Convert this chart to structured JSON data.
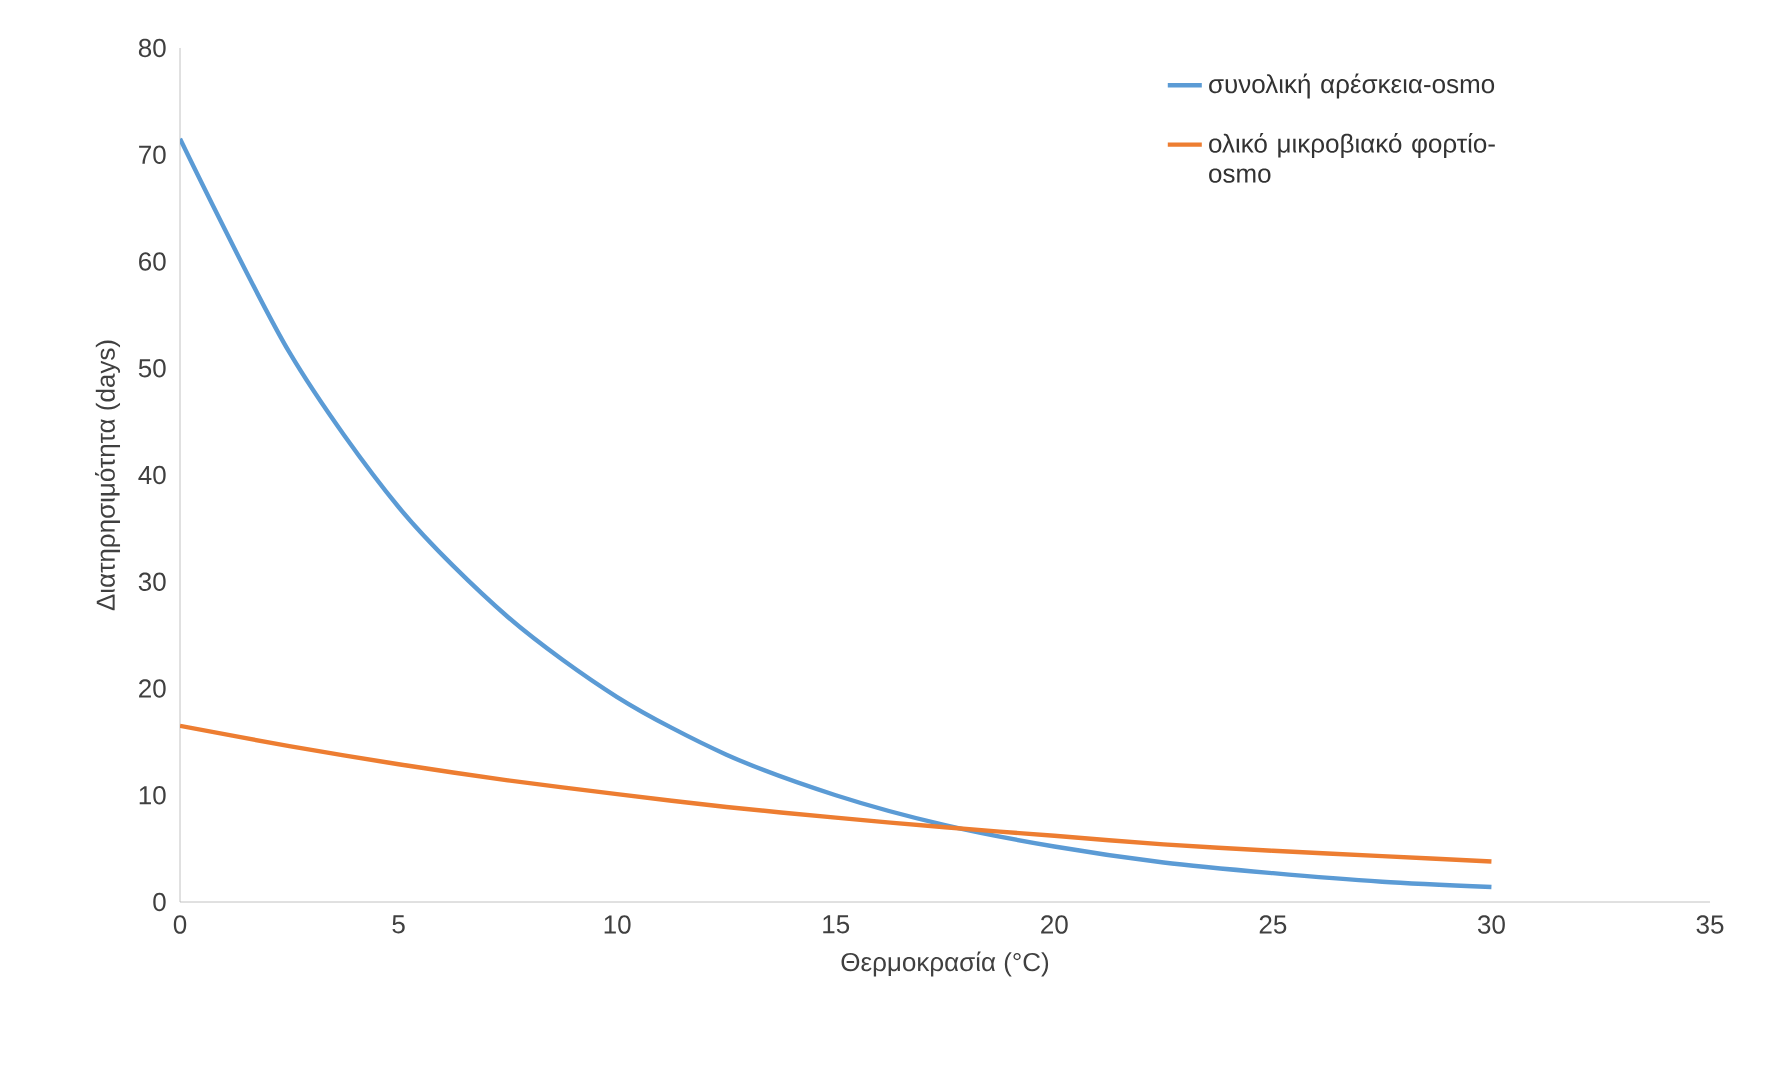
{
  "chart_data": {
    "type": "line",
    "xlabel": "Θερμοκρασία (°C)",
    "ylabel": "Διατηρησιμότητα (days)",
    "x": [
      0,
      2.5,
      5,
      7.5,
      10,
      12.5,
      15,
      17.5,
      20,
      22.5,
      25,
      27.5,
      30
    ],
    "xlim": [
      0,
      35
    ],
    "xticks": [
      0,
      5,
      10,
      15,
      20,
      25,
      30,
      35
    ],
    "ylim": [
      0,
      80
    ],
    "yticks": [
      0,
      10,
      20,
      30,
      40,
      50,
      60,
      70,
      80
    ],
    "legend": "top right",
    "series": [
      {
        "name": "συνολική αρέσκεια-osmo",
        "color": "#5b9bd5",
        "values": [
          71.5,
          51.5,
          37,
          26.7,
          19.2,
          13.8,
          10,
          7.2,
          5.2,
          3.7,
          2.7,
          1.9,
          1.4
        ]
      },
      {
        "name": "ολικό μικροβιακό φορτίο-osmo",
        "color": "#ed7d31",
        "values": [
          16.5,
          14.6,
          12.9,
          11.4,
          10.1,
          8.9,
          7.9,
          7.0,
          6.2,
          5.4,
          4.8,
          4.3,
          3.8
        ]
      }
    ]
  }
}
